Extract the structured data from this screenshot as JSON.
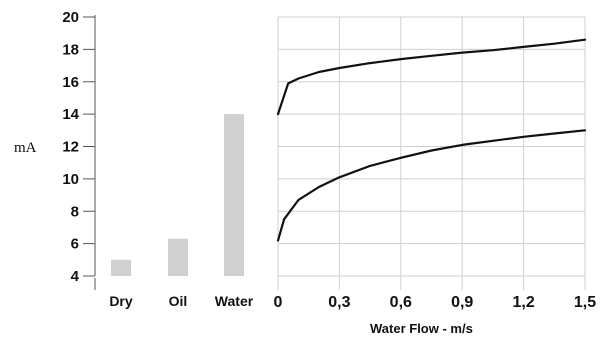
{
  "chart_data": {
    "type": "bar+line",
    "ylabel": "mA",
    "ylim": [
      4,
      20
    ],
    "yticks": [
      "4",
      "6",
      "8",
      "10",
      "12",
      "14",
      "16",
      "18",
      "20"
    ],
    "bar_panel": {
      "categories": [
        "Dry",
        "Oil",
        "Water"
      ],
      "values": [
        5,
        6.3,
        14
      ],
      "bar_color": "#d0d0d0"
    },
    "line_panel": {
      "xlabel": "Water Flow - m/s",
      "xlim": [
        0,
        1.5
      ],
      "xticks": [
        "0",
        "0,3",
        "0,6",
        "0,9",
        "1,2",
        "1,5"
      ],
      "grid": true,
      "series": [
        {
          "x": [
            0,
            0.05,
            0.1,
            0.2,
            0.3,
            0.45,
            0.6,
            0.75,
            0.9,
            1.05,
            1.2,
            1.35,
            1.5
          ],
          "y": [
            14,
            15.9,
            16.2,
            16.6,
            16.85,
            17.15,
            17.4,
            17.6,
            17.8,
            17.95,
            18.15,
            18.35,
            18.6
          ]
        },
        {
          "x": [
            0,
            0.03,
            0.1,
            0.2,
            0.3,
            0.45,
            0.6,
            0.75,
            0.9,
            1.05,
            1.2,
            1.35,
            1.5
          ],
          "y": [
            6.2,
            7.5,
            8.7,
            9.5,
            10.1,
            10.8,
            11.3,
            11.75,
            12.1,
            12.35,
            12.6,
            12.8,
            13.0
          ]
        }
      ],
      "line_color": "#111111"
    }
  }
}
